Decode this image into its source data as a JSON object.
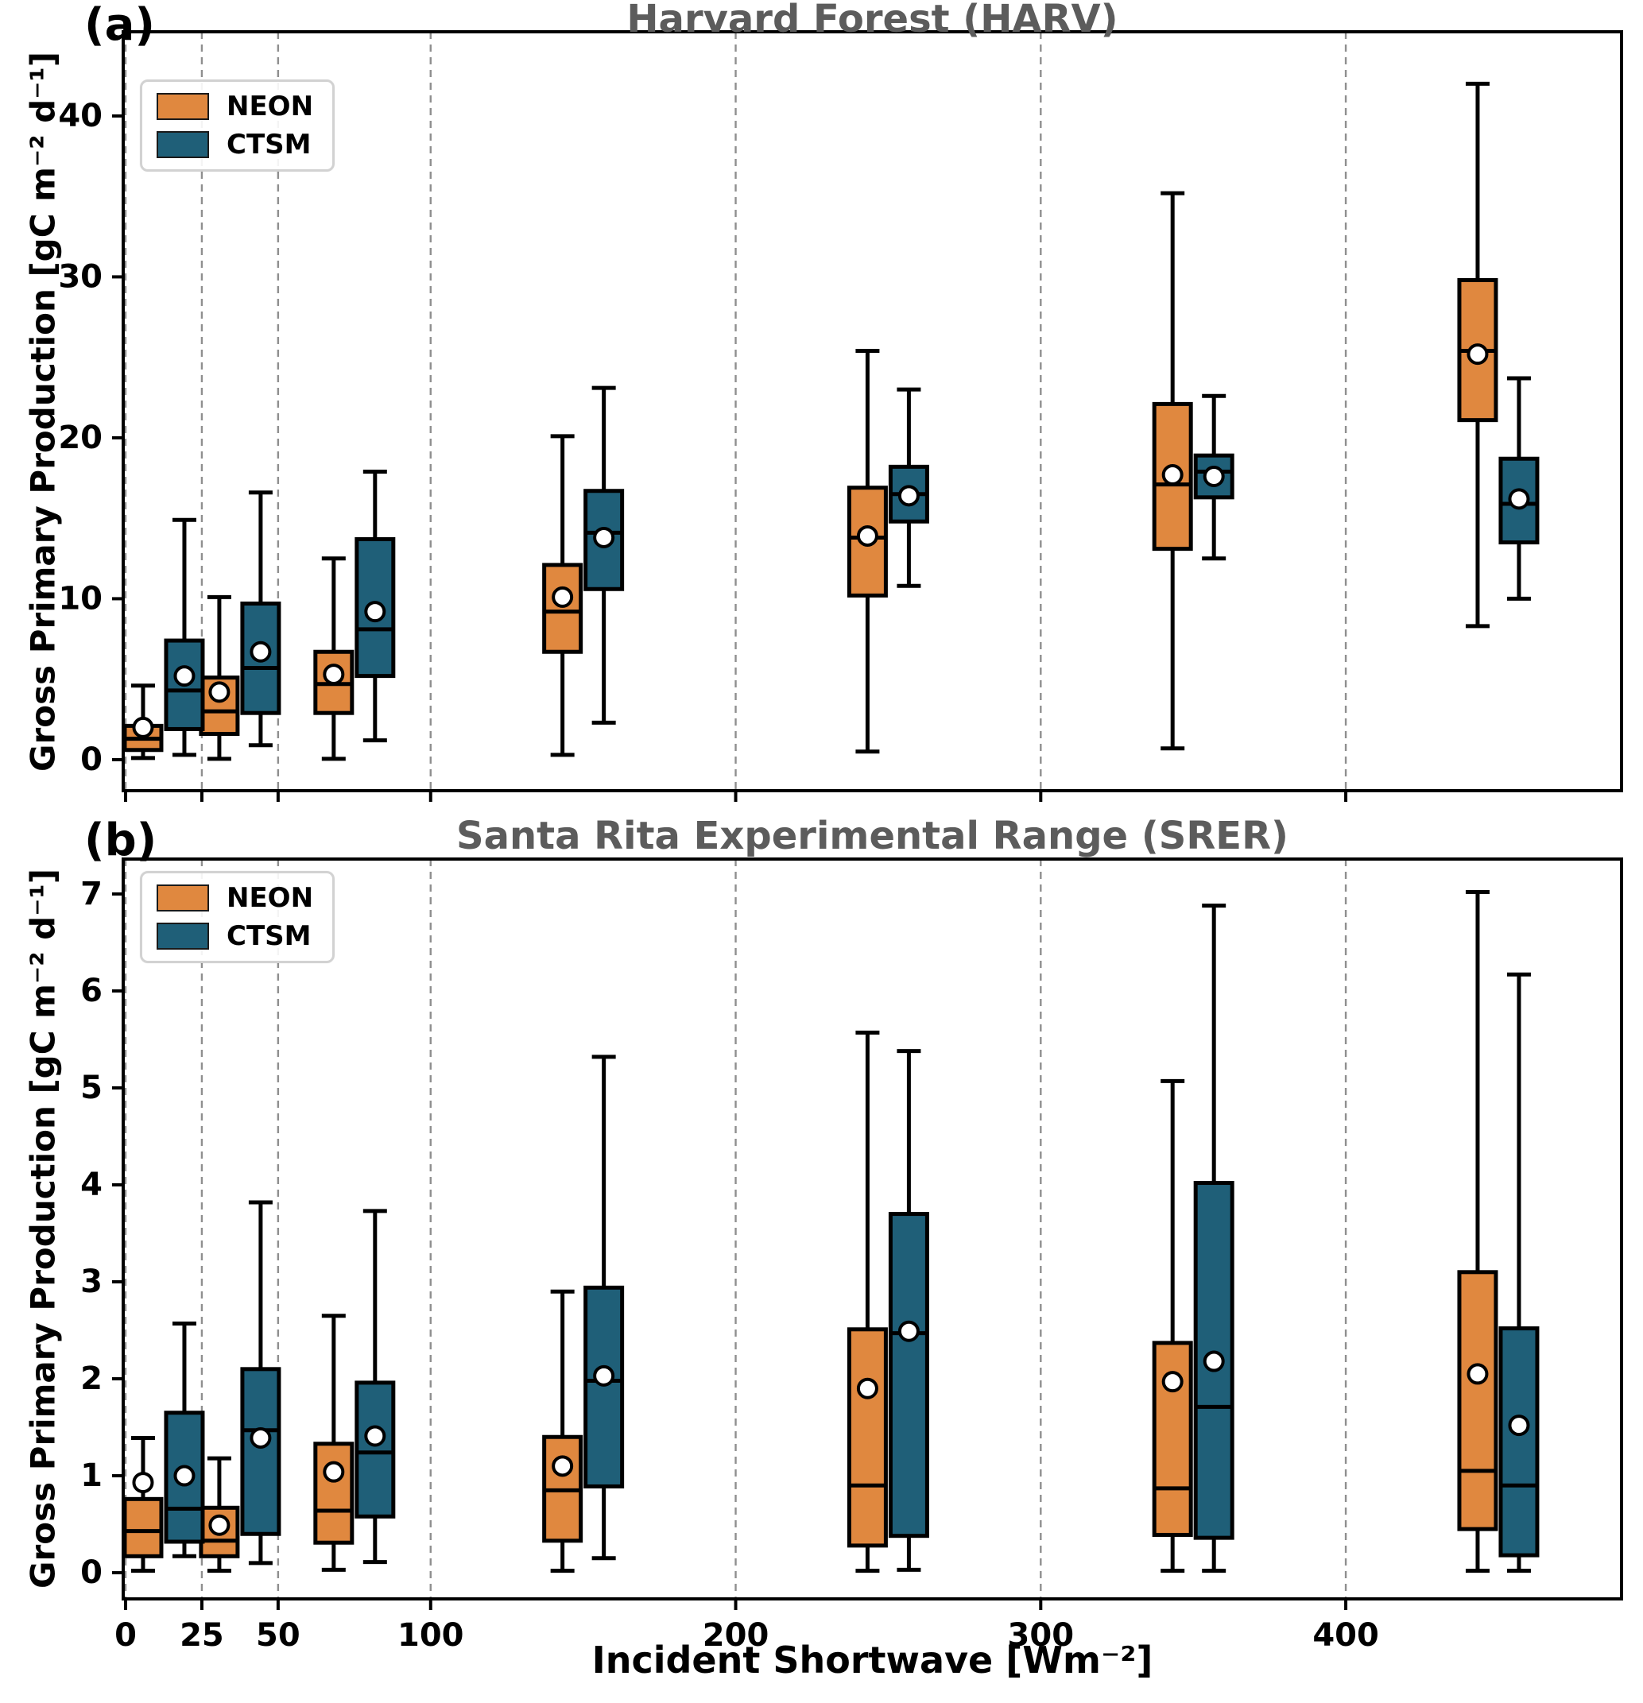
{
  "xaxis": {
    "label": "Incident Shortwave [Wm⁻²]",
    "ticks": [
      0,
      25,
      50,
      100,
      200,
      300,
      400
    ],
    "xlim": [
      -0.78,
      490.4
    ],
    "bin_centers": [
      12.5,
      37.5,
      75,
      150,
      250,
      350,
      450
    ]
  },
  "chart_data": [
    {
      "type": "box",
      "panel": "a",
      "tag": "(a)",
      "title": "Harvard Forest (HARV)",
      "ylabel": "Gross Primary Production [gC m⁻² d⁻¹]",
      "xlabel": "Incident Shortwave [Wm⁻²]",
      "ylim": [
        -1.93,
        45.23
      ],
      "yticks": [
        0,
        10,
        20,
        30,
        40
      ],
      "grid": "vertical-dashed",
      "legend_position": "upper-left",
      "x_bin_centers": [
        12.5,
        37.5,
        75,
        150,
        250,
        350,
        450
      ],
      "series": [
        {
          "name": "NEON",
          "color": "#E0883F",
          "boxes": [
            {
              "min": 0.1,
              "q1": 0.6,
              "med": 1.3,
              "q3": 2.1,
              "max": 4.6,
              "mean": 2.0
            },
            {
              "min": 0.05,
              "q1": 1.6,
              "med": 3.0,
              "q3": 5.1,
              "max": 10.1,
              "mean": 4.2
            },
            {
              "min": 0.05,
              "q1": 2.9,
              "med": 4.7,
              "q3": 6.7,
              "max": 12.5,
              "mean": 5.3
            },
            {
              "min": 0.3,
              "q1": 6.7,
              "med": 9.2,
              "q3": 12.1,
              "max": 20.1,
              "mean": 10.1
            },
            {
              "min": 0.5,
              "q1": 10.2,
              "med": 13.8,
              "q3": 16.9,
              "max": 25.4,
              "mean": 13.9
            },
            {
              "min": 0.7,
              "q1": 13.1,
              "med": 17.1,
              "q3": 22.1,
              "max": 35.2,
              "mean": 17.7
            },
            {
              "min": 8.3,
              "q1": 21.1,
              "med": 25.4,
              "q3": 29.8,
              "max": 42.0,
              "mean": 25.2
            }
          ]
        },
        {
          "name": "CTSM",
          "color": "#1F5F78",
          "boxes": [
            {
              "min": 0.3,
              "q1": 1.9,
              "med": 4.3,
              "q3": 7.4,
              "max": 14.9,
              "mean": 5.2
            },
            {
              "min": 0.9,
              "q1": 2.9,
              "med": 5.7,
              "q3": 9.7,
              "max": 16.6,
              "mean": 6.7
            },
            {
              "min": 1.2,
              "q1": 5.2,
              "med": 8.1,
              "q3": 13.7,
              "max": 17.9,
              "mean": 9.2
            },
            {
              "min": 2.3,
              "q1": 10.6,
              "med": 14.1,
              "q3": 16.7,
              "max": 23.1,
              "mean": 13.8
            },
            {
              "min": 10.8,
              "q1": 14.8,
              "med": 16.5,
              "q3": 18.2,
              "max": 23.0,
              "mean": 16.4
            },
            {
              "min": 12.5,
              "q1": 16.3,
              "med": 17.9,
              "q3": 18.9,
              "max": 22.6,
              "mean": 17.6
            },
            {
              "min": 10.0,
              "q1": 13.5,
              "med": 15.9,
              "q3": 18.7,
              "max": 23.7,
              "mean": 16.2
            }
          ]
        }
      ]
    },
    {
      "type": "box",
      "panel": "b",
      "tag": "(b)",
      "title": "Santa Rita Experimental Range (SRER)",
      "ylabel": "Gross Primary Production [gC m⁻² d⁻¹]",
      "xlabel": "Incident Shortwave [Wm⁻²]",
      "ylim": [
        -0.27,
        7.36
      ],
      "yticks": [
        0,
        1,
        2,
        3,
        4,
        5,
        6,
        7
      ],
      "grid": "vertical-dashed",
      "legend_position": "upper-left",
      "x_bin_centers": [
        12.5,
        37.5,
        75,
        150,
        250,
        350,
        450
      ],
      "series": [
        {
          "name": "NEON",
          "color": "#E0883F",
          "boxes": [
            {
              "min": 0.02,
              "q1": 0.17,
              "med": 0.43,
              "q3": 0.76,
              "max": 1.39,
              "mean": 0.93
            },
            {
              "min": 0.02,
              "q1": 0.17,
              "med": 0.33,
              "q3": 0.67,
              "max": 1.18,
              "mean": 0.49
            },
            {
              "min": 0.03,
              "q1": 0.31,
              "med": 0.64,
              "q3": 1.33,
              "max": 2.65,
              "mean": 1.04
            },
            {
              "min": 0.02,
              "q1": 0.33,
              "med": 0.85,
              "q3": 1.4,
              "max": 2.9,
              "mean": 1.1
            },
            {
              "min": 0.02,
              "q1": 0.28,
              "med": 0.9,
              "q3": 2.51,
              "max": 5.57,
              "mean": 1.9
            },
            {
              "min": 0.02,
              "q1": 0.39,
              "med": 0.87,
              "q3": 2.37,
              "max": 5.07,
              "mean": 1.97
            },
            {
              "min": 0.02,
              "q1": 0.45,
              "med": 1.05,
              "q3": 3.1,
              "max": 7.02,
              "mean": 2.05
            }
          ]
        },
        {
          "name": "CTSM",
          "color": "#1F5F78",
          "boxes": [
            {
              "min": 0.17,
              "q1": 0.32,
              "med": 0.66,
              "q3": 1.65,
              "max": 2.57,
              "mean": 1.0
            },
            {
              "min": 0.1,
              "q1": 0.4,
              "med": 1.47,
              "q3": 2.1,
              "max": 3.82,
              "mean": 1.39
            },
            {
              "min": 0.11,
              "q1": 0.58,
              "med": 1.24,
              "q3": 1.96,
              "max": 3.73,
              "mean": 1.41
            },
            {
              "min": 0.15,
              "q1": 0.89,
              "med": 1.98,
              "q3": 2.94,
              "max": 5.32,
              "mean": 2.03
            },
            {
              "min": 0.03,
              "q1": 0.38,
              "med": 2.47,
              "q3": 3.7,
              "max": 5.38,
              "mean": 2.49
            },
            {
              "min": 0.02,
              "q1": 0.36,
              "med": 1.71,
              "q3": 4.02,
              "max": 6.88,
              "mean": 2.18
            },
            {
              "min": 0.02,
              "q1": 0.18,
              "med": 0.9,
              "q3": 2.52,
              "max": 6.17,
              "mean": 1.52
            }
          ]
        }
      ]
    }
  ],
  "styles": {
    "mean_marker_fill": "#ffffff",
    "gridline_color": "#8f8f8f",
    "box_edge_color": "#000000",
    "title_color": "#5c5c5c"
  }
}
